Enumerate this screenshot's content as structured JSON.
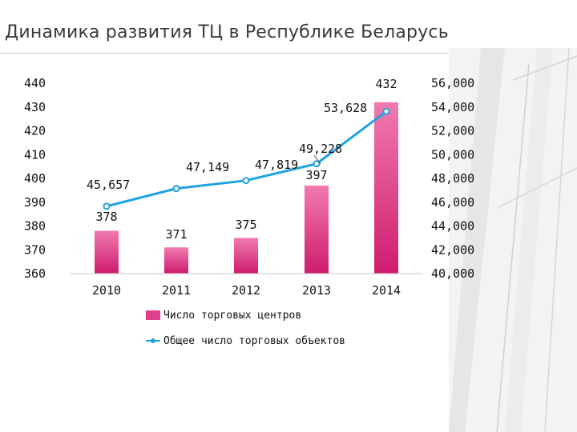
{
  "title": "Динамика развития ТЦ в Республике Беларусь",
  "chart_data": {
    "type": "bar+line",
    "categories": [
      "2010",
      "2011",
      "2012",
      "2013",
      "2014"
    ],
    "bar_series": {
      "name": "Число торговых центров",
      "values": [
        378,
        371,
        375,
        397,
        432
      ],
      "labels": [
        "378",
        "371",
        "375",
        "397",
        "432"
      ],
      "color": "#e0408a",
      "axis": "left"
    },
    "line_series": {
      "name": "Общее число торговых объектов",
      "values": [
        45657,
        47149,
        47819,
        49228,
        53628
      ],
      "labels": [
        "45,657",
        "47,149",
        "47,819",
        "49,228",
        "53,628"
      ],
      "color": "#1fa3e0",
      "axis": "right"
    },
    "left_axis": {
      "ylim": [
        360,
        440
      ],
      "ticks": [
        "360",
        "370",
        "380",
        "390",
        "400",
        "410",
        "420",
        "430",
        "440"
      ]
    },
    "right_axis": {
      "ylim": [
        40000,
        56000
      ],
      "ticks": [
        "40,000",
        "42,000",
        "44,000",
        "46,000",
        "48,000",
        "50,000",
        "52,000",
        "54,000",
        "56,000"
      ]
    },
    "grid": false,
    "legend_position": "bottom"
  }
}
